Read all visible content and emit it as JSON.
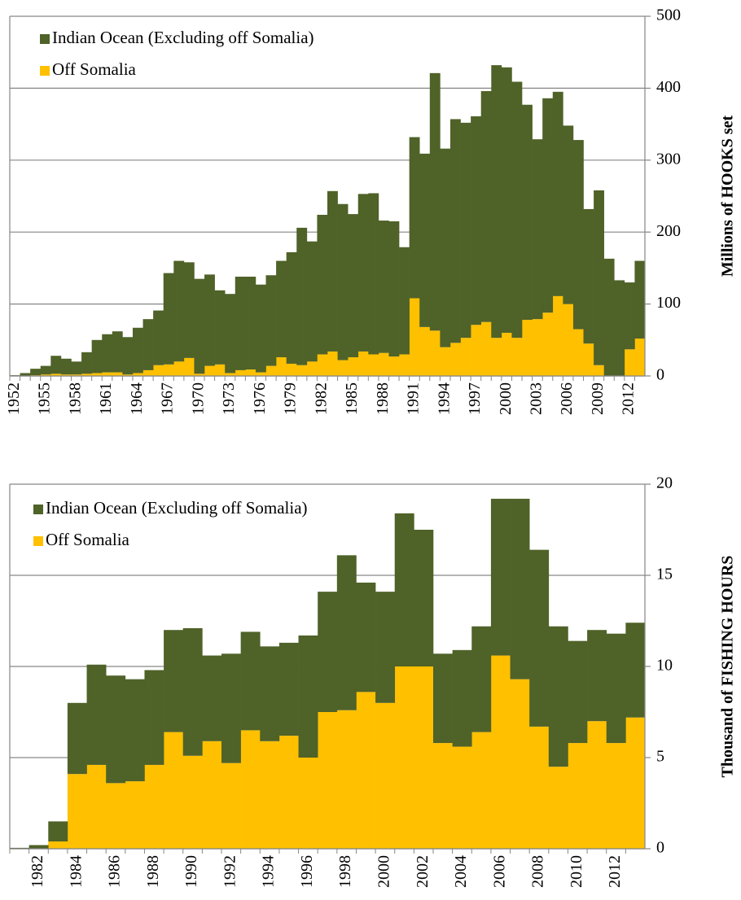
{
  "chart_data": [
    {
      "type": "bar",
      "stacked": true,
      "y_label": "Millions of HOOKS set",
      "y_axis_side": "right",
      "legend": "top-left",
      "grid": true,
      "categories": [
        "1952",
        null,
        null,
        "1955",
        null,
        null,
        "1958",
        null,
        null,
        "1961",
        null,
        null,
        "1964",
        null,
        null,
        "1967",
        null,
        null,
        "1970",
        null,
        null,
        "1973",
        null,
        null,
        "1976",
        null,
        null,
        "1979",
        null,
        null,
        "1982",
        null,
        null,
        "1985",
        null,
        null,
        "1988",
        null,
        null,
        "1991",
        null,
        null,
        "1994",
        null,
        null,
        "1997",
        null,
        null,
        "2000",
        null,
        null,
        "2003",
        null,
        null,
        "2006",
        null,
        null,
        "2009",
        null,
        null,
        "2012",
        null
      ],
      "series": [
        {
          "name": "Indian Ocean (Excluding off Somalia)",
          "color": "#4f6228",
          "values": [
            1,
            4,
            9,
            12,
            25,
            22,
            18,
            30,
            46,
            53,
            57,
            52,
            63,
            71,
            76,
            127,
            140,
            133,
            132,
            127,
            103,
            110,
            130,
            129,
            122,
            126,
            134,
            155,
            191,
            167,
            194,
            223,
            217,
            199,
            219,
            224,
            184,
            188,
            149,
            224,
            241,
            358,
            276,
            311,
            299,
            290,
            321,
            379,
            369,
            356,
            299,
            250,
            298,
            284,
            248,
            263,
            187,
            243,
            163,
            133,
            93,
            108
          ]
        },
        {
          "name": "Off Somalia",
          "color": "#ffc000",
          "values": [
            0,
            0,
            1,
            2,
            3,
            2,
            2,
            3,
            4,
            5,
            5,
            2,
            4,
            8,
            15,
            16,
            20,
            25,
            3,
            14,
            16,
            4,
            8,
            9,
            5,
            14,
            26,
            17,
            15,
            20,
            30,
            34,
            22,
            26,
            34,
            30,
            32,
            27,
            30,
            108,
            68,
            63,
            40,
            46,
            53,
            71,
            75,
            53,
            60,
            53,
            78,
            79,
            88,
            111,
            100,
            65,
            45,
            15,
            0,
            0,
            37,
            52
          ]
        }
      ],
      "ylim": [
        0,
        500
      ],
      "yticks": [
        0,
        100,
        200,
        300,
        400,
        500
      ]
    },
    {
      "type": "bar",
      "stacked": true,
      "y_label": "Thousand of FISHING HOURS",
      "y_axis_side": "right",
      "legend": "top-left",
      "grid": true,
      "categories": [
        null,
        "1982",
        null,
        "1984",
        null,
        "1986",
        null,
        "1988",
        null,
        "1990",
        null,
        "1992",
        null,
        "1994",
        null,
        "1996",
        null,
        "1998",
        null,
        "2000",
        null,
        "2002",
        null,
        "2004",
        null,
        "2006",
        null,
        "2008",
        null,
        "2010",
        null,
        "2012",
        null
      ],
      "series": [
        {
          "name": "Indian Ocean (Excluding off Somalia)",
          "color": "#4f6228",
          "values": [
            0.05,
            0.2,
            1.1,
            3.9,
            5.5,
            5.9,
            5.6,
            5.2,
            5.6,
            7.0,
            4.7,
            6.0,
            5.4,
            5.2,
            5.1,
            6.7,
            6.6,
            8.5,
            6.0,
            6.1,
            8.4,
            7.5,
            4.9,
            5.3,
            5.8,
            8.6,
            9.9,
            9.7,
            7.7,
            5.6,
            5.0,
            6.0,
            5.2
          ]
        },
        {
          "name": "Off Somalia",
          "color": "#ffc000",
          "values": [
            0,
            0,
            0.4,
            4.1,
            4.6,
            3.6,
            3.7,
            4.6,
            6.4,
            5.1,
            5.9,
            4.7,
            6.5,
            5.9,
            6.2,
            5.0,
            7.5,
            7.6,
            8.6,
            8.0,
            10.0,
            10.0,
            5.8,
            5.6,
            6.4,
            10.6,
            9.3,
            6.7,
            4.5,
            5.8,
            7.0,
            5.8,
            7.2
          ]
        }
      ],
      "ylim": [
        0,
        20
      ],
      "yticks": [
        0,
        5,
        10,
        15,
        20
      ]
    }
  ]
}
